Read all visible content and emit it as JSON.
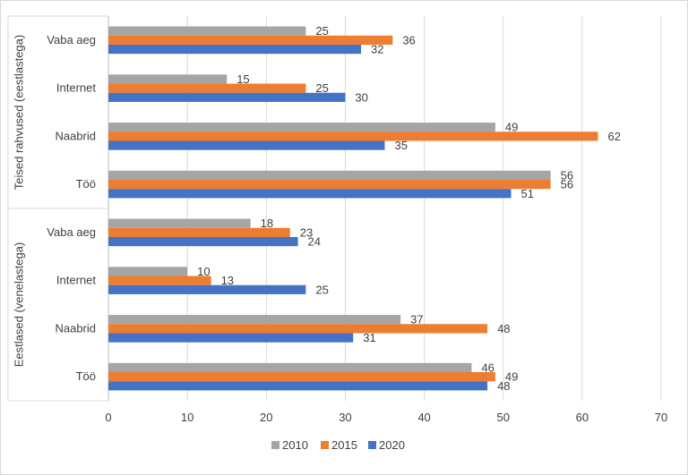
{
  "chart_data": {
    "type": "bar",
    "orientation": "horizontal",
    "title": "",
    "xlabel": "",
    "ylabel": "",
    "xlim": [
      0,
      70
    ],
    "xticks": [
      0,
      10,
      20,
      30,
      40,
      50,
      60,
      70
    ],
    "grid": true,
    "legend_position": "bottom",
    "series_names": [
      "2010",
      "2015",
      "2020"
    ],
    "colors": [
      "#A5A5A5",
      "#ED7D31",
      "#4472C4"
    ],
    "groups": [
      {
        "label": "Teised rahvused (eestlastega)",
        "categories": [
          {
            "label": "Vaba aeg",
            "values": [
              25,
              36,
              32
            ]
          },
          {
            "label": "Internet",
            "values": [
              15,
              25,
              30
            ]
          },
          {
            "label": "Naabrid",
            "values": [
              49,
              62,
              35
            ]
          },
          {
            "label": "Töö",
            "values": [
              56,
              56,
              51
            ]
          }
        ]
      },
      {
        "label": "Eestlased (venelastega)",
        "categories": [
          {
            "label": "Vaba aeg",
            "values": [
              18,
              23,
              24
            ]
          },
          {
            "label": "Internet",
            "values": [
              10,
              13,
              25
            ]
          },
          {
            "label": "Naabrid",
            "values": [
              37,
              48,
              31
            ]
          },
          {
            "label": "Töö",
            "values": [
              46,
              49,
              48
            ]
          }
        ]
      }
    ]
  }
}
